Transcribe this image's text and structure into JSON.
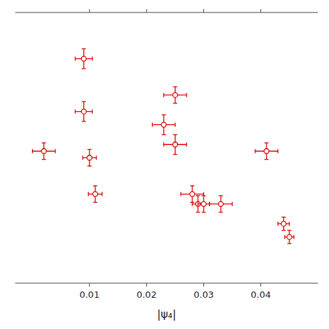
{
  "chart_data": {
    "type": "scatter",
    "xlabel": "|ψ₄|",
    "x": [
      0.009,
      0.009,
      0.002,
      0.01,
      0.011,
      0.023,
      0.025,
      0.025,
      0.028,
      0.029,
      0.03,
      0.033,
      0.041,
      0.044,
      0.045
    ],
    "values": [
      0.88,
      0.72,
      0.6,
      0.58,
      0.47,
      0.68,
      0.77,
      0.62,
      0.47,
      0.44,
      0.44,
      0.44,
      0.6,
      0.38,
      0.34
    ],
    "xerr": [
      0.0015,
      0.0015,
      0.002,
      0.0012,
      0.0012,
      0.002,
      0.002,
      0.002,
      0.002,
      0.001,
      0.001,
      0.002,
      0.002,
      0.001,
      0.0008
    ],
    "yerr": [
      0.03,
      0.03,
      0.025,
      0.025,
      0.025,
      0.03,
      0.025,
      0.03,
      0.025,
      0.025,
      0.025,
      0.025,
      0.025,
      0.02,
      0.02
    ],
    "color": "#dd0000",
    "marker": "circle",
    "xlim": [
      -0.003,
      0.05
    ],
    "ylim": [
      0.2,
      1.02
    ],
    "xticks": [
      0.01,
      0.02,
      0.03,
      0.04
    ],
    "tick_labels": "x"
  }
}
